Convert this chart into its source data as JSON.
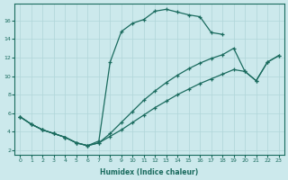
{
  "background_color": "#cce9ec",
  "grid_color": "#b0d5d8",
  "line_color": "#1a6b5e",
  "xlabel": "Humidex (Indice chaleur)",
  "xlim": [
    -0.5,
    23.5
  ],
  "ylim": [
    1.5,
    17.8
  ],
  "xticks": [
    0,
    1,
    2,
    3,
    4,
    5,
    6,
    7,
    8,
    9,
    10,
    11,
    12,
    13,
    14,
    15,
    16,
    17,
    18,
    19,
    20,
    21,
    22,
    23
  ],
  "yticks": [
    2,
    4,
    6,
    8,
    10,
    12,
    14,
    16
  ],
  "line1_x": [
    0,
    1,
    2,
    3,
    4,
    5,
    6,
    7,
    8,
    9,
    10,
    11,
    12,
    13,
    14,
    15,
    16,
    17,
    18
  ],
  "line1_y": [
    5.6,
    4.8,
    4.2,
    3.8,
    3.4,
    2.8,
    2.5,
    3.0,
    11.5,
    14.8,
    15.7,
    16.1,
    17.0,
    17.2,
    16.9,
    16.6,
    16.4,
    14.7,
    14.5
  ],
  "line2_x": [
    0,
    1,
    2,
    3,
    4,
    5,
    6,
    7,
    8,
    9,
    10,
    11,
    12,
    13,
    14,
    15,
    16,
    17,
    18,
    19,
    20,
    21,
    22,
    23
  ],
  "line2_y": [
    5.6,
    4.8,
    4.2,
    3.8,
    3.4,
    2.8,
    2.5,
    2.8,
    3.8,
    5.0,
    6.2,
    7.4,
    8.4,
    9.3,
    10.1,
    10.8,
    11.4,
    11.9,
    12.3,
    13.0,
    10.5,
    9.5,
    11.5,
    12.2
  ],
  "line3_x": [
    0,
    1,
    2,
    3,
    4,
    5,
    6,
    7,
    8,
    9,
    10,
    11,
    12,
    13,
    14,
    15,
    16,
    17,
    18,
    19,
    20,
    21,
    22,
    23
  ],
  "line3_y": [
    5.6,
    4.8,
    4.2,
    3.8,
    3.4,
    2.8,
    2.5,
    2.8,
    3.5,
    4.2,
    5.0,
    5.8,
    6.6,
    7.3,
    8.0,
    8.6,
    9.2,
    9.7,
    10.2,
    10.7,
    10.5,
    9.5,
    11.5,
    12.2
  ]
}
